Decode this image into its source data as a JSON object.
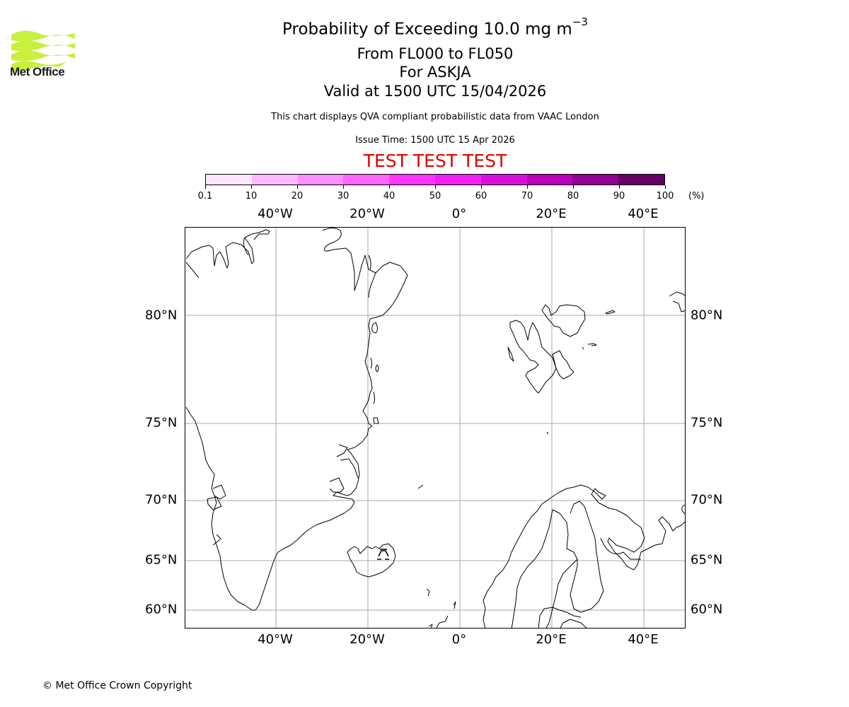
{
  "logo": {
    "icon": "met-office-wave-logo-icon",
    "text": "Met Office",
    "color": "#c8f03c"
  },
  "header": {
    "title": "Probability of Exceeding 10.0 mg m",
    "title_sup": "−3",
    "line2": "From FL000 to FL050",
    "line3": "For ASKJA",
    "line4": "Valid at 1500 UTC 15/04/2026",
    "description": "This chart displays QVA compliant probabilistic data from VAAC London",
    "issue_time": "Issue Time: 1500 UTC 15 Apr 2026",
    "test_banner": "TEST TEST TEST",
    "test_color": "#e00000"
  },
  "colorbar": {
    "unit": "(%)",
    "ticks": [
      "0.1",
      "10",
      "20",
      "30",
      "40",
      "50",
      "60",
      "70",
      "80",
      "90",
      "100"
    ],
    "colors": [
      "#ffe6ff",
      "#ffbbff",
      "#ff90ff",
      "#ff66ff",
      "#ff38ff",
      "#f21ff2",
      "#d90fd9",
      "#bb00bb",
      "#930093",
      "#660066"
    ]
  },
  "map": {
    "lon_labels": [
      "40°W",
      "20°W",
      "0°",
      "20°E",
      "40°E"
    ],
    "lat_labels": [
      "80°N",
      "75°N",
      "70°N",
      "65°N",
      "60°N"
    ],
    "gridline_color": "#aaaaaa",
    "volcano": "ASKJA",
    "regions": [
      "Greenland",
      "Iceland",
      "Svalbard",
      "Scandinavia",
      "Franz Josef Land",
      "Faroe Islands",
      "Shetland"
    ]
  },
  "footer": {
    "copyright": "© Met Office Crown Copyright"
  },
  "chart_data": {
    "type": "heatmap",
    "title": "Probability of Exceeding 10.0 mg m−3",
    "subtitle": "From FL000 to FL050 / For ASKJA / Valid at 1500 UTC 15/04/2026",
    "colorbar_levels": [
      0.1,
      10,
      20,
      30,
      40,
      50,
      60,
      70,
      80,
      90,
      100
    ],
    "colorbar_unit": "%",
    "x_ticks": [
      "40°W",
      "20°W",
      "0°",
      "20°E",
      "40°E"
    ],
    "y_ticks": [
      "80°N",
      "75°N",
      "70°N",
      "65°N",
      "60°N"
    ],
    "xlim": [
      "~60°W",
      "~45°E"
    ],
    "ylim": [
      "~59°N",
      "~85°N"
    ],
    "grid": true,
    "data_values": "no probability contours shown (empty field)"
  }
}
